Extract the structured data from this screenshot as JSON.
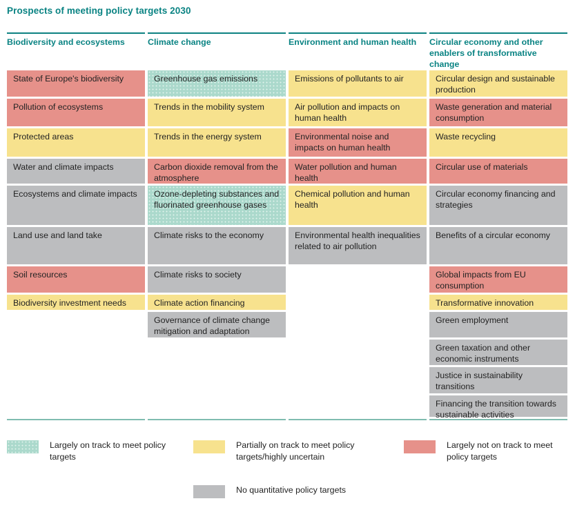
{
  "title": "Prospects of meeting policy targets 2030",
  "chart_data": {
    "type": "table",
    "title": "Prospects of meeting policy targets 2030",
    "status_colors": {
      "on_track": "#abd9cc",
      "partial": "#f7e28e",
      "not_on_track": "#e6918a",
      "no_targets": "#bcbdbf",
      "accent_teal": "#0a8383",
      "bottom_rule": "#7fbcb0"
    },
    "columns": [
      {
        "header": "Biodiversity and ecosystems",
        "cells": [
          {
            "row": 1,
            "label": "State of Europe's biodiversity",
            "status": "not_on_track"
          },
          {
            "row": 2,
            "label": "Pollution of ecosystems",
            "status": "not_on_track"
          },
          {
            "row": 3,
            "label": "Protected areas",
            "status": "partial"
          },
          {
            "row": 4,
            "label": "Water and climate impacts",
            "status": "no_targets"
          },
          {
            "row": 5,
            "label": "Ecosystems and climate impacts",
            "status": "no_targets"
          },
          {
            "row": 6,
            "label": "Land use and land take",
            "status": "no_targets"
          },
          {
            "row": 7,
            "label": "Soil resources",
            "status": "not_on_track"
          },
          {
            "row": 8,
            "label": "Biodiversity investment needs",
            "status": "partial"
          }
        ]
      },
      {
        "header": "Climate change",
        "cells": [
          {
            "row": 1,
            "label": "Greenhouse gas emissions",
            "status": "on_track"
          },
          {
            "row": 2,
            "label": "Trends in the mobility system",
            "status": "partial"
          },
          {
            "row": 3,
            "label": "Trends in the energy system",
            "status": "partial"
          },
          {
            "row": 4,
            "label": "Carbon dioxide removal from the atmosphere",
            "status": "not_on_track"
          },
          {
            "row": 5,
            "label": "Ozone-depleting substances and fluorinated greenhouse gases",
            "status": "on_track"
          },
          {
            "row": 6,
            "label": "Climate risks to the economy",
            "status": "no_targets"
          },
          {
            "row": 7,
            "label": "Climate risks to society",
            "status": "no_targets"
          },
          {
            "row": 8,
            "label": "Climate action financing",
            "status": "partial"
          },
          {
            "row": 9,
            "label": "Governance of climate change mitigation and adaptation",
            "status": "no_targets"
          }
        ]
      },
      {
        "header": "Environment and human health",
        "cells": [
          {
            "row": 1,
            "label": "Emissions of pollutants to air",
            "status": "partial"
          },
          {
            "row": 2,
            "label": "Air pollution and impacts on human health",
            "status": "partial"
          },
          {
            "row": 3,
            "label": "Environmental noise and impacts on human health",
            "status": "not_on_track"
          },
          {
            "row": 4,
            "label": "Water pollution and human health",
            "status": "not_on_track"
          },
          {
            "row": 5,
            "label": "Chemical pollution and human health",
            "status": "partial"
          },
          {
            "row": 6,
            "label": "Environmental health inequalities related to air pollution",
            "status": "no_targets"
          }
        ]
      },
      {
        "header": "Circular economy and other enablers of transformative change",
        "cells": [
          {
            "row": 1,
            "label": "Circular design and sustainable production",
            "status": "partial"
          },
          {
            "row": 2,
            "label": "Waste generation and material consumption",
            "status": "not_on_track"
          },
          {
            "row": 3,
            "label": "Waste recycling",
            "status": "partial"
          },
          {
            "row": 4,
            "label": "Circular use of materials",
            "status": "not_on_track"
          },
          {
            "row": 5,
            "label": "Circular economy financing and strategies",
            "status": "no_targets"
          },
          {
            "row": 6,
            "label": "Benefits of a circular economy",
            "status": "no_targets"
          },
          {
            "row": 7,
            "label": "Global impacts from EU consumption",
            "status": "not_on_track"
          },
          {
            "row": 8,
            "label": "Transformative innovation",
            "status": "partial"
          },
          {
            "row": 9,
            "label": "Green employment",
            "status": "no_targets"
          },
          {
            "row": 10,
            "label": "Green taxation and other economic instruments",
            "status": "no_targets"
          },
          {
            "row": 11,
            "label": "Justice in sustainability transitions",
            "status": "no_targets"
          },
          {
            "row": 12,
            "label": "Financing the transition towards sustainable activities",
            "status": "no_targets"
          }
        ]
      }
    ],
    "legend": [
      {
        "status": "on_track",
        "label": "Largely on track to meet policy targets"
      },
      {
        "status": "partial",
        "label": "Partially on track to meet policy targets/highly uncertain"
      },
      {
        "status": "not_on_track",
        "label": "Largely not on track to meet policy targets"
      },
      {
        "status": "no_targets",
        "label": "No quantitative policy targets"
      }
    ]
  }
}
